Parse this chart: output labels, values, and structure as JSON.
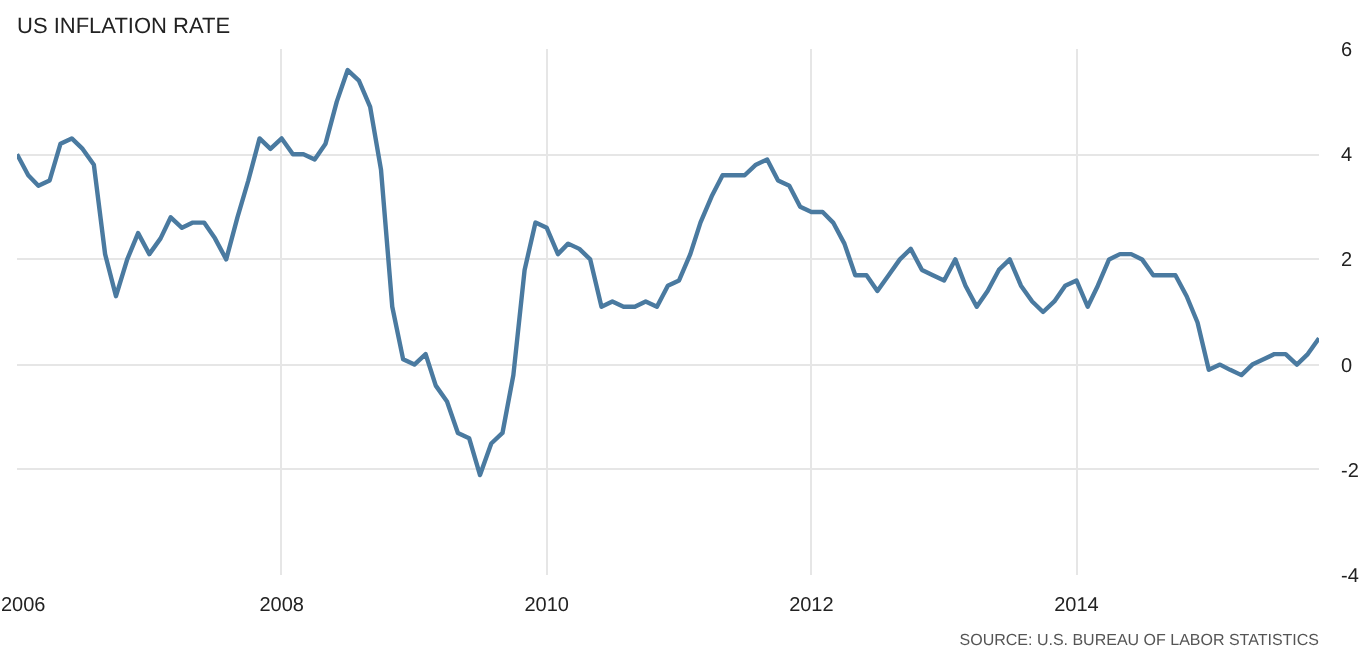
{
  "chart_data": {
    "type": "line",
    "title": "US INFLATION RATE",
    "x": [
      "2006-01",
      "2006-02",
      "2006-03",
      "2006-04",
      "2006-05",
      "2006-06",
      "2006-07",
      "2006-08",
      "2006-09",
      "2006-10",
      "2006-11",
      "2006-12",
      "2007-01",
      "2007-02",
      "2007-03",
      "2007-04",
      "2007-05",
      "2007-06",
      "2007-07",
      "2007-08",
      "2007-09",
      "2007-10",
      "2007-11",
      "2007-12",
      "2008-01",
      "2008-02",
      "2008-03",
      "2008-04",
      "2008-05",
      "2008-06",
      "2008-07",
      "2008-08",
      "2008-09",
      "2008-10",
      "2008-11",
      "2008-12",
      "2009-01",
      "2009-02",
      "2009-03",
      "2009-04",
      "2009-05",
      "2009-06",
      "2009-07",
      "2009-08",
      "2009-09",
      "2009-10",
      "2009-11",
      "2009-12",
      "2010-01",
      "2010-02",
      "2010-03",
      "2010-04",
      "2010-05",
      "2010-06",
      "2010-07",
      "2010-08",
      "2010-09",
      "2010-10",
      "2010-11",
      "2010-12",
      "2011-01",
      "2011-02",
      "2011-03",
      "2011-04",
      "2011-05",
      "2011-06",
      "2011-07",
      "2011-08",
      "2011-09",
      "2011-10",
      "2011-11",
      "2011-12",
      "2012-01",
      "2012-02",
      "2012-03",
      "2012-04",
      "2012-05",
      "2012-06",
      "2012-07",
      "2012-08",
      "2012-09",
      "2012-10",
      "2012-11",
      "2012-12",
      "2013-01",
      "2013-02",
      "2013-03",
      "2013-04",
      "2013-05",
      "2013-06",
      "2013-07",
      "2013-08",
      "2013-09",
      "2013-10",
      "2013-11",
      "2013-12",
      "2014-01",
      "2014-02",
      "2014-03",
      "2014-04",
      "2014-05",
      "2014-06",
      "2014-07",
      "2014-08",
      "2014-09",
      "2014-10",
      "2014-11",
      "2014-12",
      "2015-01",
      "2015-02",
      "2015-03",
      "2015-04",
      "2015-05",
      "2015-06",
      "2015-07",
      "2015-08",
      "2015-09",
      "2015-10",
      "2015-11"
    ],
    "series": [
      {
        "color": "#4a7aa0",
        "values": [
          4.0,
          3.6,
          3.4,
          3.5,
          4.2,
          4.3,
          4.1,
          3.8,
          2.1,
          1.3,
          2.0,
          2.5,
          2.1,
          2.4,
          2.8,
          2.6,
          2.7,
          2.7,
          2.4,
          2.0,
          2.8,
          3.5,
          4.3,
          4.1,
          4.3,
          4.0,
          4.0,
          3.9,
          4.2,
          5.0,
          5.6,
          5.4,
          4.9,
          3.7,
          1.1,
          0.1,
          0.0,
          0.2,
          -0.4,
          -0.7,
          -1.3,
          -1.4,
          -2.1,
          -1.5,
          -1.3,
          -0.2,
          1.8,
          2.7,
          2.6,
          2.1,
          2.3,
          2.2,
          2.0,
          1.1,
          1.2,
          1.1,
          1.1,
          1.2,
          1.1,
          1.5,
          1.6,
          2.1,
          2.7,
          3.2,
          3.6,
          3.6,
          3.6,
          3.8,
          3.9,
          3.5,
          3.4,
          3.0,
          2.9,
          2.9,
          2.7,
          2.3,
          1.7,
          1.7,
          1.4,
          1.7,
          2.0,
          2.2,
          1.8,
          1.7,
          1.6,
          2.0,
          1.5,
          1.1,
          1.4,
          1.8,
          2.0,
          1.5,
          1.2,
          1.0,
          1.2,
          1.5,
          1.6,
          1.1,
          1.5,
          2.0,
          2.1,
          2.1,
          2.0,
          1.7,
          1.7,
          1.7,
          1.3,
          0.8,
          -0.1,
          0.0,
          -0.1,
          -0.2,
          0.0,
          0.1,
          0.2,
          0.2,
          0.0,
          0.2,
          0.5
        ]
      }
    ],
    "xlim": [
      "2006-01",
      "2015-11"
    ],
    "xticks": [
      "2006",
      "2008",
      "2010",
      "2012",
      "2014"
    ],
    "ylim": [
      -4,
      6
    ],
    "yticks": [
      -4,
      -2,
      0,
      2,
      4,
      6
    ],
    "grid": true,
    "line_style": "solid",
    "annotations": [
      "SOURCE: U.S. BUREAU OF LABOR STATISTICS"
    ]
  }
}
